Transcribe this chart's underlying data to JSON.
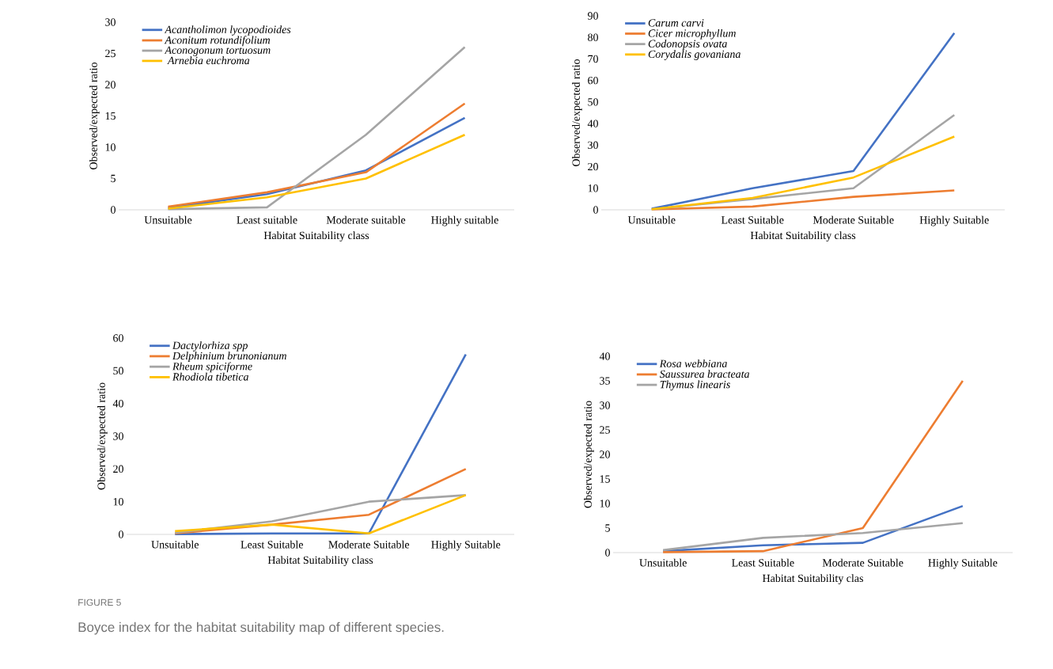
{
  "chart_data": [
    {
      "type": "line",
      "xlabel": "Habitat Suitability class",
      "ylabel": "Observed/expected  ratio",
      "categories": [
        "Unsuitable",
        "Least suitable",
        "Moderate suitable",
        "Highly suitable"
      ],
      "ylim": [
        0,
        30
      ],
      "yticks": [
        0,
        5,
        10,
        15,
        20,
        25,
        30
      ],
      "legend": "top left",
      "series": [
        {
          "name": "Acantholimon lycopodioides",
          "color": "#4472c4",
          "values": [
            0.3,
            2.5,
            6.3,
            14.7
          ]
        },
        {
          "name": "Aconitum rotundifolium",
          "color": "#ed7d31",
          "values": [
            0.5,
            2.8,
            6,
            17
          ]
        },
        {
          "name": "Aconogonum tortuosum",
          "color": "#a5a5a5",
          "values": [
            0.1,
            0.4,
            12,
            26
          ]
        },
        {
          "name": " Arnebia euchroma",
          "color": "#ffc000",
          "values": [
            0.2,
            2,
            5,
            12
          ]
        }
      ]
    },
    {
      "type": "line",
      "xlabel": "Habitat Suitability class",
      "ylabel": "Observed/expected  ratio",
      "categories": [
        "Unsuitable",
        "Least Suitable",
        "Moderate Suitable",
        "Highly Suitable"
      ],
      "ylim": [
        0,
        90
      ],
      "yticks": [
        0,
        10,
        20,
        30,
        40,
        50,
        60,
        70,
        80,
        90
      ],
      "legend": "top left",
      "series": [
        {
          "name": "Carum carvi",
          "color": "#4472c4",
          "values": [
            0.5,
            10,
            18,
            82
          ]
        },
        {
          "name": "Cicer microphyllum",
          "color": "#ed7d31",
          "values": [
            0.2,
            1.5,
            6,
            9
          ]
        },
        {
          "name": "Codonopsis ovata",
          "color": "#a5a5a5",
          "values": [
            0.3,
            5,
            10,
            44
          ]
        },
        {
          "name": "Corydalis govaniana",
          "color": "#ffc000",
          "values": [
            0.3,
            5.5,
            15,
            34
          ]
        }
      ]
    },
    {
      "type": "line",
      "xlabel": "Habitat Suitability class",
      "ylabel": "Observed/expected  ratio",
      "categories": [
        "Unsuitable",
        "Least Suitable",
        "Moderate Suitable",
        "Highly Suitable"
      ],
      "ylim": [
        0,
        60
      ],
      "yticks": [
        0,
        10,
        20,
        30,
        40,
        50,
        60
      ],
      "legend": "top left",
      "series": [
        {
          "name": "Dactylorhiza spp",
          "color": "#4472c4",
          "values": [
            0.1,
            0.3,
            0.3,
            55
          ]
        },
        {
          "name": "Delphinium brunonianum",
          "color": "#ed7d31",
          "values": [
            0.3,
            3,
            6,
            20
          ]
        },
        {
          "name": "Rheum spiciforme",
          "color": "#a5a5a5",
          "values": [
            0.5,
            4,
            10,
            12
          ]
        },
        {
          "name": "Rhodiola tibetica",
          "color": "#ffc000",
          "values": [
            1,
            3,
            0.3,
            12
          ]
        }
      ]
    },
    {
      "type": "line",
      "xlabel": "Habitat Suitability clas",
      "ylabel": "Observed/expected  ratio",
      "categories": [
        "Unsuitable",
        "Least Suitable",
        "Moderate Suitable",
        "Highly Suitable"
      ],
      "ylim": [
        0,
        40
      ],
      "yticks": [
        0,
        5,
        10,
        15,
        20,
        25,
        30,
        35,
        40
      ],
      "legend": "top left",
      "annotations": [
        "FIGURE 5",
        "Boyce index for the habitat suitability map of different species."
      ],
      "series": [
        {
          "name": "Rosa webbiana",
          "color": "#4472c4",
          "values": [
            0.3,
            1.5,
            2,
            9.5
          ]
        },
        {
          "name": "Saussurea bracteata",
          "color": "#ed7d31",
          "values": [
            0.1,
            0.3,
            5,
            35
          ]
        },
        {
          "name": "Thymus linearis",
          "color": "#a5a5a5",
          "values": [
            0.5,
            3,
            4,
            6
          ]
        }
      ]
    }
  ]
}
